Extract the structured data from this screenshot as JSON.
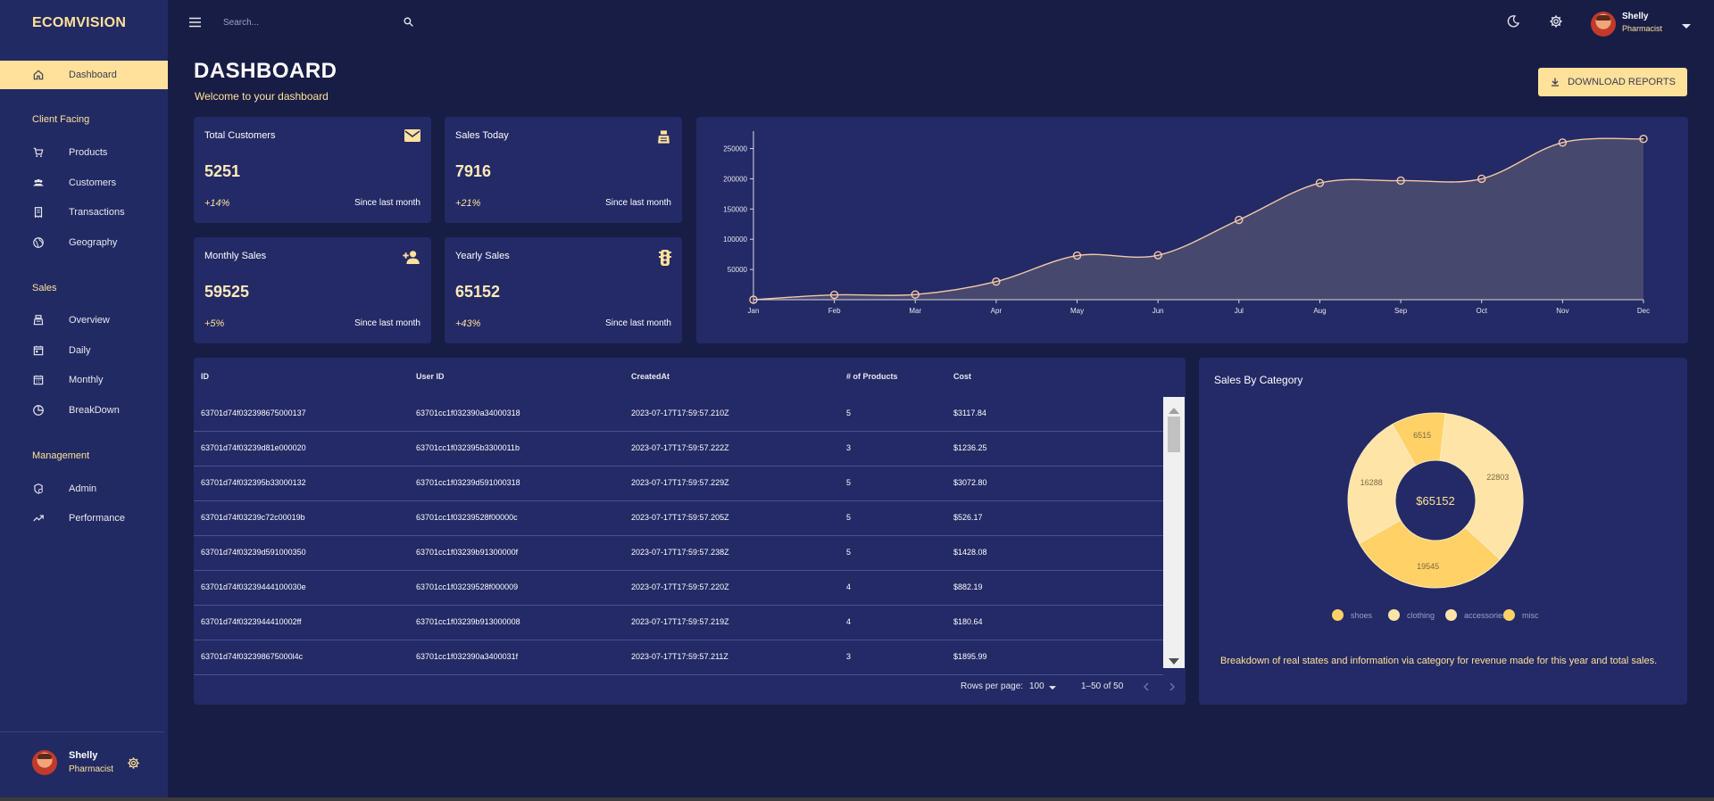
{
  "brand": "ECOMVISION",
  "nav": {
    "dashboard": "Dashboard",
    "section_client": "Client Facing",
    "products": "Products",
    "customers": "Customers",
    "transactions": "Transactions",
    "geography": "Geography",
    "section_sales": "Sales",
    "overview": "Overview",
    "daily": "Daily",
    "monthly": "Monthly",
    "breakdown": "BreakDown",
    "section_management": "Management",
    "admin": "Admin",
    "performance": "Performance"
  },
  "user": {
    "name": "Shelly",
    "role": "Pharmacist"
  },
  "search": {
    "placeholder": "Search..."
  },
  "header": {
    "title": "DASHBOARD",
    "subtitle": "Welcome to your dashboard",
    "download_label": "DOWNLOAD REPORTS"
  },
  "stats": [
    {
      "title": "Total Customers",
      "value": "5251",
      "delta": "+14%",
      "since": "Since last month",
      "icon": "email-icon"
    },
    {
      "title": "Sales Today",
      "value": "7916",
      "delta": "+21%",
      "since": "Since last month",
      "icon": "point-of-sale-icon"
    },
    {
      "title": "Monthly Sales",
      "value": "59525",
      "delta": "+5%",
      "since": "Since last month",
      "icon": "person-add-icon"
    },
    {
      "title": "Yearly Sales",
      "value": "65152",
      "delta": "+43%",
      "since": "Since last month",
      "icon": "traffic-icon"
    }
  ],
  "colors": {
    "accent": "#ffe19a",
    "background": "#181d45",
    "panel": "#232a66",
    "line": "#f5c7a9",
    "area": "#4a4a6e"
  },
  "table": {
    "headers": [
      "ID",
      "User ID",
      "CreatedAt",
      "# of Products",
      "Cost"
    ],
    "rows": [
      [
        "63701d74f032398675000137",
        "63701cc1f032390a34000318",
        "2023-07-17T17:59:57.210Z",
        "5",
        "$3117.84"
      ],
      [
        "63701d74f03239d81e000020",
        "63701cc1f032395b3300011b",
        "2023-07-17T17:59:57.222Z",
        "3",
        "$1236.25"
      ],
      [
        "63701d74f032395b33000132",
        "63701cc1f03239d591000318",
        "2023-07-17T17:59:57.229Z",
        "5",
        "$3072.80"
      ],
      [
        "63701d74f03239c72c00019b",
        "63701cc1f03239528f00000c",
        "2023-07-17T17:59:57.205Z",
        "5",
        "$526.17"
      ],
      [
        "63701d74f03239d591000350",
        "63701cc1f03239b91300000f",
        "2023-07-17T17:59:57.238Z",
        "5",
        "$1428.08"
      ],
      [
        "63701d74f03239444100030e",
        "63701cc1f03239528f000009",
        "2023-07-17T17:59:57.220Z",
        "4",
        "$882.19"
      ],
      [
        "63701d74f0323944410002ff",
        "63701cc1f03239b913000008",
        "2023-07-17T17:59:57.219Z",
        "4",
        "$180.64"
      ],
      [
        "63701d74f032398675000l4c",
        "63701cc1f032390a3400031f",
        "2023-07-17T17:59:57.211Z",
        "3",
        "$1895.99"
      ]
    ],
    "rows_per_page_label": "Rows per page:",
    "rows_per_page": "100",
    "range": "1–50 of 50"
  },
  "donut": {
    "title": "Sales By Category",
    "center": "$65152",
    "description": "Breakdown of real states and information via category for revenue made for this year and total sales.",
    "legend": [
      "shoes",
      "clothing",
      "accessories",
      "misc"
    ]
  },
  "chart_data": [
    {
      "type": "area",
      "categories": [
        "Jan",
        "Feb",
        "Mar",
        "Apr",
        "May",
        "Jun",
        "Jul",
        "Aug",
        "Sep",
        "Oct",
        "Nov",
        "Dec"
      ],
      "values": [
        0,
        8000,
        8500,
        30000,
        73000,
        73500,
        132000,
        193000,
        197000,
        200000,
        260000,
        266000
      ],
      "yticks": [
        50000,
        100000,
        150000,
        200000,
        250000
      ],
      "ylim": [
        0,
        270000
      ],
      "grid": false
    },
    {
      "type": "pie",
      "categories": [
        "shoes",
        "clothing",
        "accessories",
        "misc"
      ],
      "values": [
        6515,
        22803,
        19545,
        16288
      ],
      "colors": [
        "#ffd166",
        "#ffe4a8",
        "#ffd166",
        "#ffe4a8"
      ]
    }
  ]
}
